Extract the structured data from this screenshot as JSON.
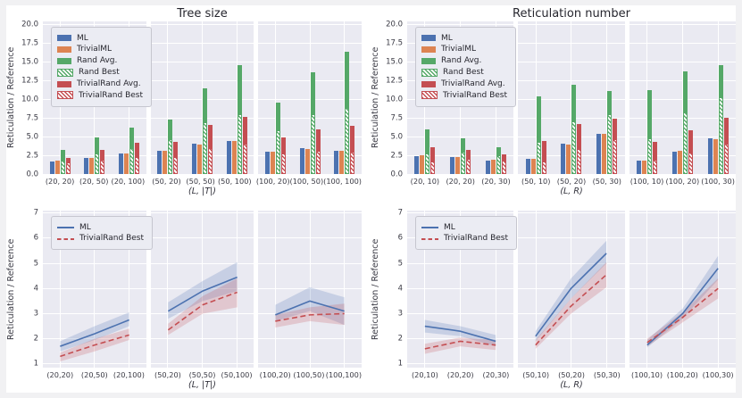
{
  "style": {
    "outer_bg": "#f1f1f3",
    "figure_bg": "#ffffff",
    "panel_bg": "#eaeaf2",
    "grid_color": "#ffffff",
    "series_colors": {
      "blue": "#4C72B0",
      "orange": "#DD8452",
      "green": "#55A868",
      "red": "#C44E52"
    }
  },
  "chart_data": [
    {
      "type": "bar",
      "title": "Tree size",
      "ylabel": "Reticulation / Reference",
      "xlabel": "(L, |T|)",
      "ylim": [
        0,
        20.4
      ],
      "yticks": [
        "0.0",
        "2.5",
        "5.0",
        "7.5",
        "10.0",
        "12.5",
        "15.0",
        "17.5",
        "20.0"
      ],
      "grid": true,
      "legend_position": "upper left",
      "legend_type": "patch",
      "groups_per_panel": 3,
      "categories": [
        "(20, 20)",
        "(20, 50)",
        "(20, 100)",
        "(50, 20)",
        "(50, 50)",
        "(50, 100)",
        "(100, 20)",
        "(100, 50)",
        "(100, 100)"
      ],
      "legend": [
        {
          "label": "ML",
          "color": "blue",
          "hatch": false
        },
        {
          "label": "TrivialML",
          "color": "orange",
          "hatch": false
        },
        {
          "label": "Rand Avg.",
          "color": "green",
          "hatch": false
        },
        {
          "label": "Rand Best",
          "color": "green",
          "hatch": true
        },
        {
          "label": "TrivialRand Avg.",
          "color": "red",
          "hatch": false
        },
        {
          "label": "TrivialRand Best",
          "color": "red",
          "hatch": true
        }
      ],
      "series": [
        {
          "name": "ML",
          "color": "blue",
          "values": [
            1.7,
            2.2,
            2.75,
            3.1,
            4.0,
            4.45,
            2.95,
            3.5,
            3.1
          ]
        },
        {
          "name": "TrivialML",
          "color": "orange",
          "values": [
            1.75,
            2.1,
            2.8,
            3.05,
            3.95,
            4.45,
            3.0,
            3.35,
            3.1
          ]
        },
        {
          "name": "Rand Avg.",
          "color": "green",
          "values": [
            3.2,
            4.9,
            6.25,
            7.3,
            11.5,
            14.55,
            9.55,
            13.55,
            16.35
          ],
          "overlay": {
            "name": "Rand Best",
            "values": [
              1.8,
              2.8,
              3.5,
              4.6,
              6.9,
              8.0,
              5.9,
              8.0,
              8.8
            ]
          }
        },
        {
          "name": "TrivialRand Avg.",
          "color": "red",
          "values": [
            2.15,
            3.2,
            4.15,
            4.35,
            6.6,
            7.65,
            4.9,
            5.95,
            6.45
          ],
          "overlay": {
            "name": "TrivialRand Best",
            "values": [
              1.5,
              1.9,
              2.25,
              2.3,
              3.5,
              4.0,
              2.8,
              3.05,
              3.0
            ]
          }
        }
      ]
    },
    {
      "type": "bar",
      "title": "Reticulation number",
      "ylabel": "Reticulation / Reference",
      "xlabel": "(L, R)",
      "ylim": [
        0,
        20.4
      ],
      "yticks": [
        "0.0",
        "2.5",
        "5.0",
        "7.5",
        "10.0",
        "12.5",
        "15.0",
        "17.5",
        "20.0"
      ],
      "grid": true,
      "legend_position": "upper left",
      "legend_type": "patch",
      "groups_per_panel": 3,
      "categories": [
        "(20, 10)",
        "(20, 20)",
        "(20, 30)",
        "(50, 10)",
        "(50, 20)",
        "(50, 30)",
        "(100, 10)",
        "(100, 20)",
        "(100, 30)"
      ],
      "legend": [
        {
          "label": "ML",
          "color": "blue",
          "hatch": false
        },
        {
          "label": "TrivialML",
          "color": "orange",
          "hatch": false
        },
        {
          "label": "Rand Avg.",
          "color": "green",
          "hatch": false
        },
        {
          "label": "Rand Best",
          "color": "green",
          "hatch": true
        },
        {
          "label": "TrivialRand Avg.",
          "color": "red",
          "hatch": false
        },
        {
          "label": "TrivialRand Best",
          "color": "red",
          "hatch": true
        }
      ],
      "series": [
        {
          "name": "ML",
          "color": "blue",
          "values": [
            2.4,
            2.25,
            1.85,
            2.05,
            4.0,
            5.4,
            1.75,
            3.0,
            4.8
          ]
        },
        {
          "name": "TrivialML",
          "color": "orange",
          "values": [
            2.45,
            2.3,
            1.9,
            2.0,
            3.95,
            5.4,
            1.8,
            3.05,
            4.7
          ]
        },
        {
          "name": "Rand Avg.",
          "color": "green",
          "values": [
            6.0,
            4.75,
            3.6,
            10.4,
            11.9,
            11.15,
            11.25,
            13.7,
            14.5
          ],
          "overlay": {
            "name": "Rand Best",
            "values": [
              2.8,
              3.0,
              2.45,
              4.25,
              7.1,
              7.95,
              4.75,
              8.2,
              10.3
            ]
          }
        },
        {
          "name": "TrivialRand Avg.",
          "color": "red",
          "values": [
            3.6,
            3.25,
            2.6,
            4.45,
            6.7,
            7.45,
            4.25,
            5.85,
            7.5
          ],
          "overlay": {
            "name": "TrivialRand Best",
            "values": [
              1.65,
              2.0,
              1.85,
              1.7,
              3.3,
              4.65,
              1.9,
              2.9,
              4.1
            ]
          }
        }
      ]
    },
    {
      "type": "line",
      "ylabel": "Reticulation / Reference",
      "xlabel": "(L, |T|)",
      "ylim": [
        0.85,
        7.1
      ],
      "yticks": [
        "1",
        "2",
        "3",
        "4",
        "5",
        "6",
        "7"
      ],
      "grid": true,
      "legend_position": "upper left",
      "legend_type": "line",
      "groups_per_panel": 3,
      "categories": [
        "(20,20)",
        "(20,50)",
        "(20,100)",
        "(50,20)",
        "(50,50)",
        "(50,100)",
        "(100,20)",
        "(100,50)",
        "(100,100)"
      ],
      "legend": [
        {
          "label": "ML",
          "color": "blue",
          "dash": false
        },
        {
          "label": "TrivialRand Best",
          "color": "red",
          "dash": true
        }
      ],
      "series": [
        {
          "name": "ML",
          "color": "blue",
          "dash": false,
          "mean": [
            1.7,
            2.2,
            2.75,
            3.1,
            3.9,
            4.45,
            2.95,
            3.5,
            3.1
          ],
          "lower": [
            1.5,
            1.95,
            2.5,
            2.8,
            3.5,
            3.9,
            2.7,
            3.1,
            2.55
          ],
          "upper": [
            1.9,
            2.5,
            3.05,
            3.45,
            4.3,
            5.05,
            3.35,
            4.05,
            3.65
          ]
        },
        {
          "name": "TrivialRand Best",
          "color": "red",
          "dash": true,
          "mean": [
            1.3,
            1.75,
            2.15,
            2.35,
            3.35,
            3.85,
            2.7,
            2.95,
            3.0
          ],
          "lower": [
            1.1,
            1.5,
            1.95,
            2.15,
            3.0,
            3.25,
            2.45,
            2.7,
            2.55
          ],
          "upper": [
            1.45,
            2.0,
            2.4,
            2.6,
            3.7,
            4.4,
            2.95,
            3.25,
            3.4
          ]
        }
      ]
    },
    {
      "type": "line",
      "ylabel": "Reticulation / Reference",
      "xlabel": "(L, R)",
      "ylim": [
        0.85,
        7.1
      ],
      "yticks": [
        "1",
        "2",
        "3",
        "4",
        "5",
        "6",
        "7"
      ],
      "grid": true,
      "legend_position": "upper left",
      "legend_type": "line",
      "groups_per_panel": 3,
      "categories": [
        "(20,10)",
        "(20,20)",
        "(20,30)",
        "(50,10)",
        "(50,20)",
        "(50,30)",
        "(100,10)",
        "(100,20)",
        "(100,30)"
      ],
      "legend": [
        {
          "label": "ML",
          "color": "blue",
          "dash": false
        },
        {
          "label": "TrivialRand Best",
          "color": "red",
          "dash": true
        }
      ],
      "series": [
        {
          "name": "ML",
          "color": "blue",
          "dash": false,
          "mean": [
            2.5,
            2.3,
            1.9,
            2.1,
            4.0,
            5.4,
            1.75,
            3.0,
            4.8
          ],
          "lower": [
            2.25,
            2.1,
            1.7,
            1.9,
            3.6,
            5.0,
            1.65,
            2.8,
            4.35
          ],
          "upper": [
            2.75,
            2.5,
            2.15,
            2.3,
            4.4,
            5.9,
            1.95,
            3.2,
            5.3
          ]
        },
        {
          "name": "TrivialRand Best",
          "color": "red",
          "dash": true,
          "mean": [
            1.6,
            1.9,
            1.75,
            1.75,
            3.3,
            4.55,
            1.85,
            2.85,
            4.0
          ],
          "lower": [
            1.4,
            1.7,
            1.55,
            1.6,
            3.0,
            4.05,
            1.7,
            2.65,
            3.6
          ],
          "upper": [
            1.8,
            2.05,
            1.95,
            1.95,
            3.6,
            5.05,
            2.0,
            3.05,
            4.4
          ]
        }
      ]
    }
  ]
}
